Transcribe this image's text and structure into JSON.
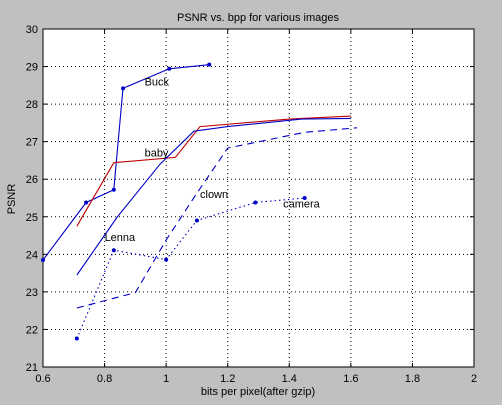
{
  "chart_data": {
    "type": "line",
    "title": "PSNR vs. bpp for various images",
    "xlabel": "bits per pixel(after gzip)",
    "ylabel": "PSNR",
    "xlim": [
      0.6,
      2
    ],
    "ylim": [
      21,
      30
    ],
    "xticks": [
      0.6,
      0.8,
      1,
      1.2,
      1.4,
      1.6,
      1.8,
      2
    ],
    "xtick_labels": [
      "0.6",
      "0.8",
      "1",
      "1.2",
      "1.4",
      "1.6",
      "1.8",
      "2"
    ],
    "yticks": [
      21,
      22,
      23,
      24,
      25,
      26,
      27,
      28,
      29,
      30
    ],
    "ytick_labels": [
      "21",
      "22",
      "23",
      "24",
      "25",
      "26",
      "27",
      "28",
      "29",
      "30"
    ],
    "grid": true,
    "series": [
      {
        "color": "#0000c8",
        "dash": "solid",
        "marker": "dot",
        "x": [
          0.6,
          0.74,
          0.83,
          0.86,
          1.01,
          1.14
        ],
        "y": [
          23.85,
          25.38,
          25.72,
          28.42,
          28.94,
          29.05
        ]
      },
      {
        "color": "#c00000",
        "dash": "solid",
        "marker": "none",
        "x": [
          0.71,
          0.83,
          1.03,
          1.11,
          1.4,
          1.6
        ],
        "y": [
          24.75,
          26.44,
          26.58,
          27.4,
          27.6,
          27.68
        ]
      },
      {
        "color": "#0000c8",
        "dash": "solid",
        "marker": "none",
        "x": [
          0.71,
          0.84,
          0.98,
          1.09,
          1.2,
          1.44,
          1.6
        ],
        "y": [
          23.45,
          24.98,
          26.4,
          27.28,
          27.4,
          27.6,
          27.62
        ]
      },
      {
        "color": "#0000c8",
        "dash": "dashed",
        "marker": "none",
        "x": [
          0.71,
          0.9,
          1.0,
          1.1,
          1.2,
          1.45,
          1.62
        ],
        "y": [
          22.57,
          22.98,
          24.38,
          25.63,
          26.83,
          27.25,
          27.37
        ]
      },
      {
        "color": "#0000c8",
        "dash": "dotted",
        "marker": "dot",
        "x": [
          0.71,
          0.83,
          1.0,
          1.1,
          1.29,
          1.45
        ],
        "y": [
          21.76,
          24.11,
          23.86,
          24.9,
          25.38,
          25.5
        ]
      }
    ],
    "annotations": [
      {
        "text": "Buck",
        "x": 0.93,
        "y": 28.5
      },
      {
        "text": "baby",
        "x": 0.93,
        "y": 26.6
      },
      {
        "text": "clown",
        "x": 1.11,
        "y": 25.5
      },
      {
        "text": "camera",
        "x": 1.38,
        "y": 25.25
      },
      {
        "text": "Lenna",
        "x": 0.8,
        "y": 24.35
      }
    ]
  }
}
